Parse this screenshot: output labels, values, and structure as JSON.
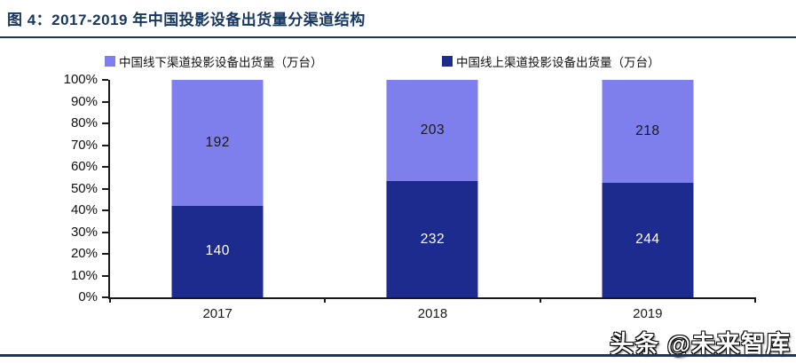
{
  "title": "图 4：2017-2019 年中国投影设备出货量分渠道结构",
  "watermark": "头条 @未来智库",
  "colors": {
    "title": "#17375E",
    "title_rule": "#17375E",
    "bottom_rule": "#17375E",
    "offline_series": "#7E7EEC",
    "online_series": "#1C2B8D",
    "axis": "#1a1a1a"
  },
  "legend": [
    {
      "label": "中国线下渠道投影设备出货量（万台）",
      "color": "#7E7EEC"
    },
    {
      "label": "中国线上渠道投影设备出货量（万台）",
      "color": "#1C2B8D"
    }
  ],
  "chart_data": {
    "type": "bar",
    "variant": "stacked-100-percent",
    "title": "图 4：2017-2019 年中国投影设备出货量分渠道结构",
    "categories": [
      "2017",
      "2018",
      "2019"
    ],
    "series": [
      {
        "name": "中国线上渠道投影设备出货量（万台）",
        "stack_position": "bottom",
        "color": "#1C2B8D",
        "label_color": "#FFFFFF",
        "values": [
          140,
          232,
          244
        ]
      },
      {
        "name": "中国线下渠道投影设备出货量（万台）",
        "stack_position": "top",
        "color": "#7E7EEC",
        "label_color": "#1A1A1A",
        "values": [
          192,
          203,
          218
        ]
      }
    ],
    "y_ticks": [
      "0%",
      "10%",
      "20%",
      "30%",
      "40%",
      "50%",
      "60%",
      "70%",
      "80%",
      "90%",
      "100%"
    ],
    "ylim": [
      0,
      100
    ],
    "grid": false,
    "legend_position": "top"
  }
}
